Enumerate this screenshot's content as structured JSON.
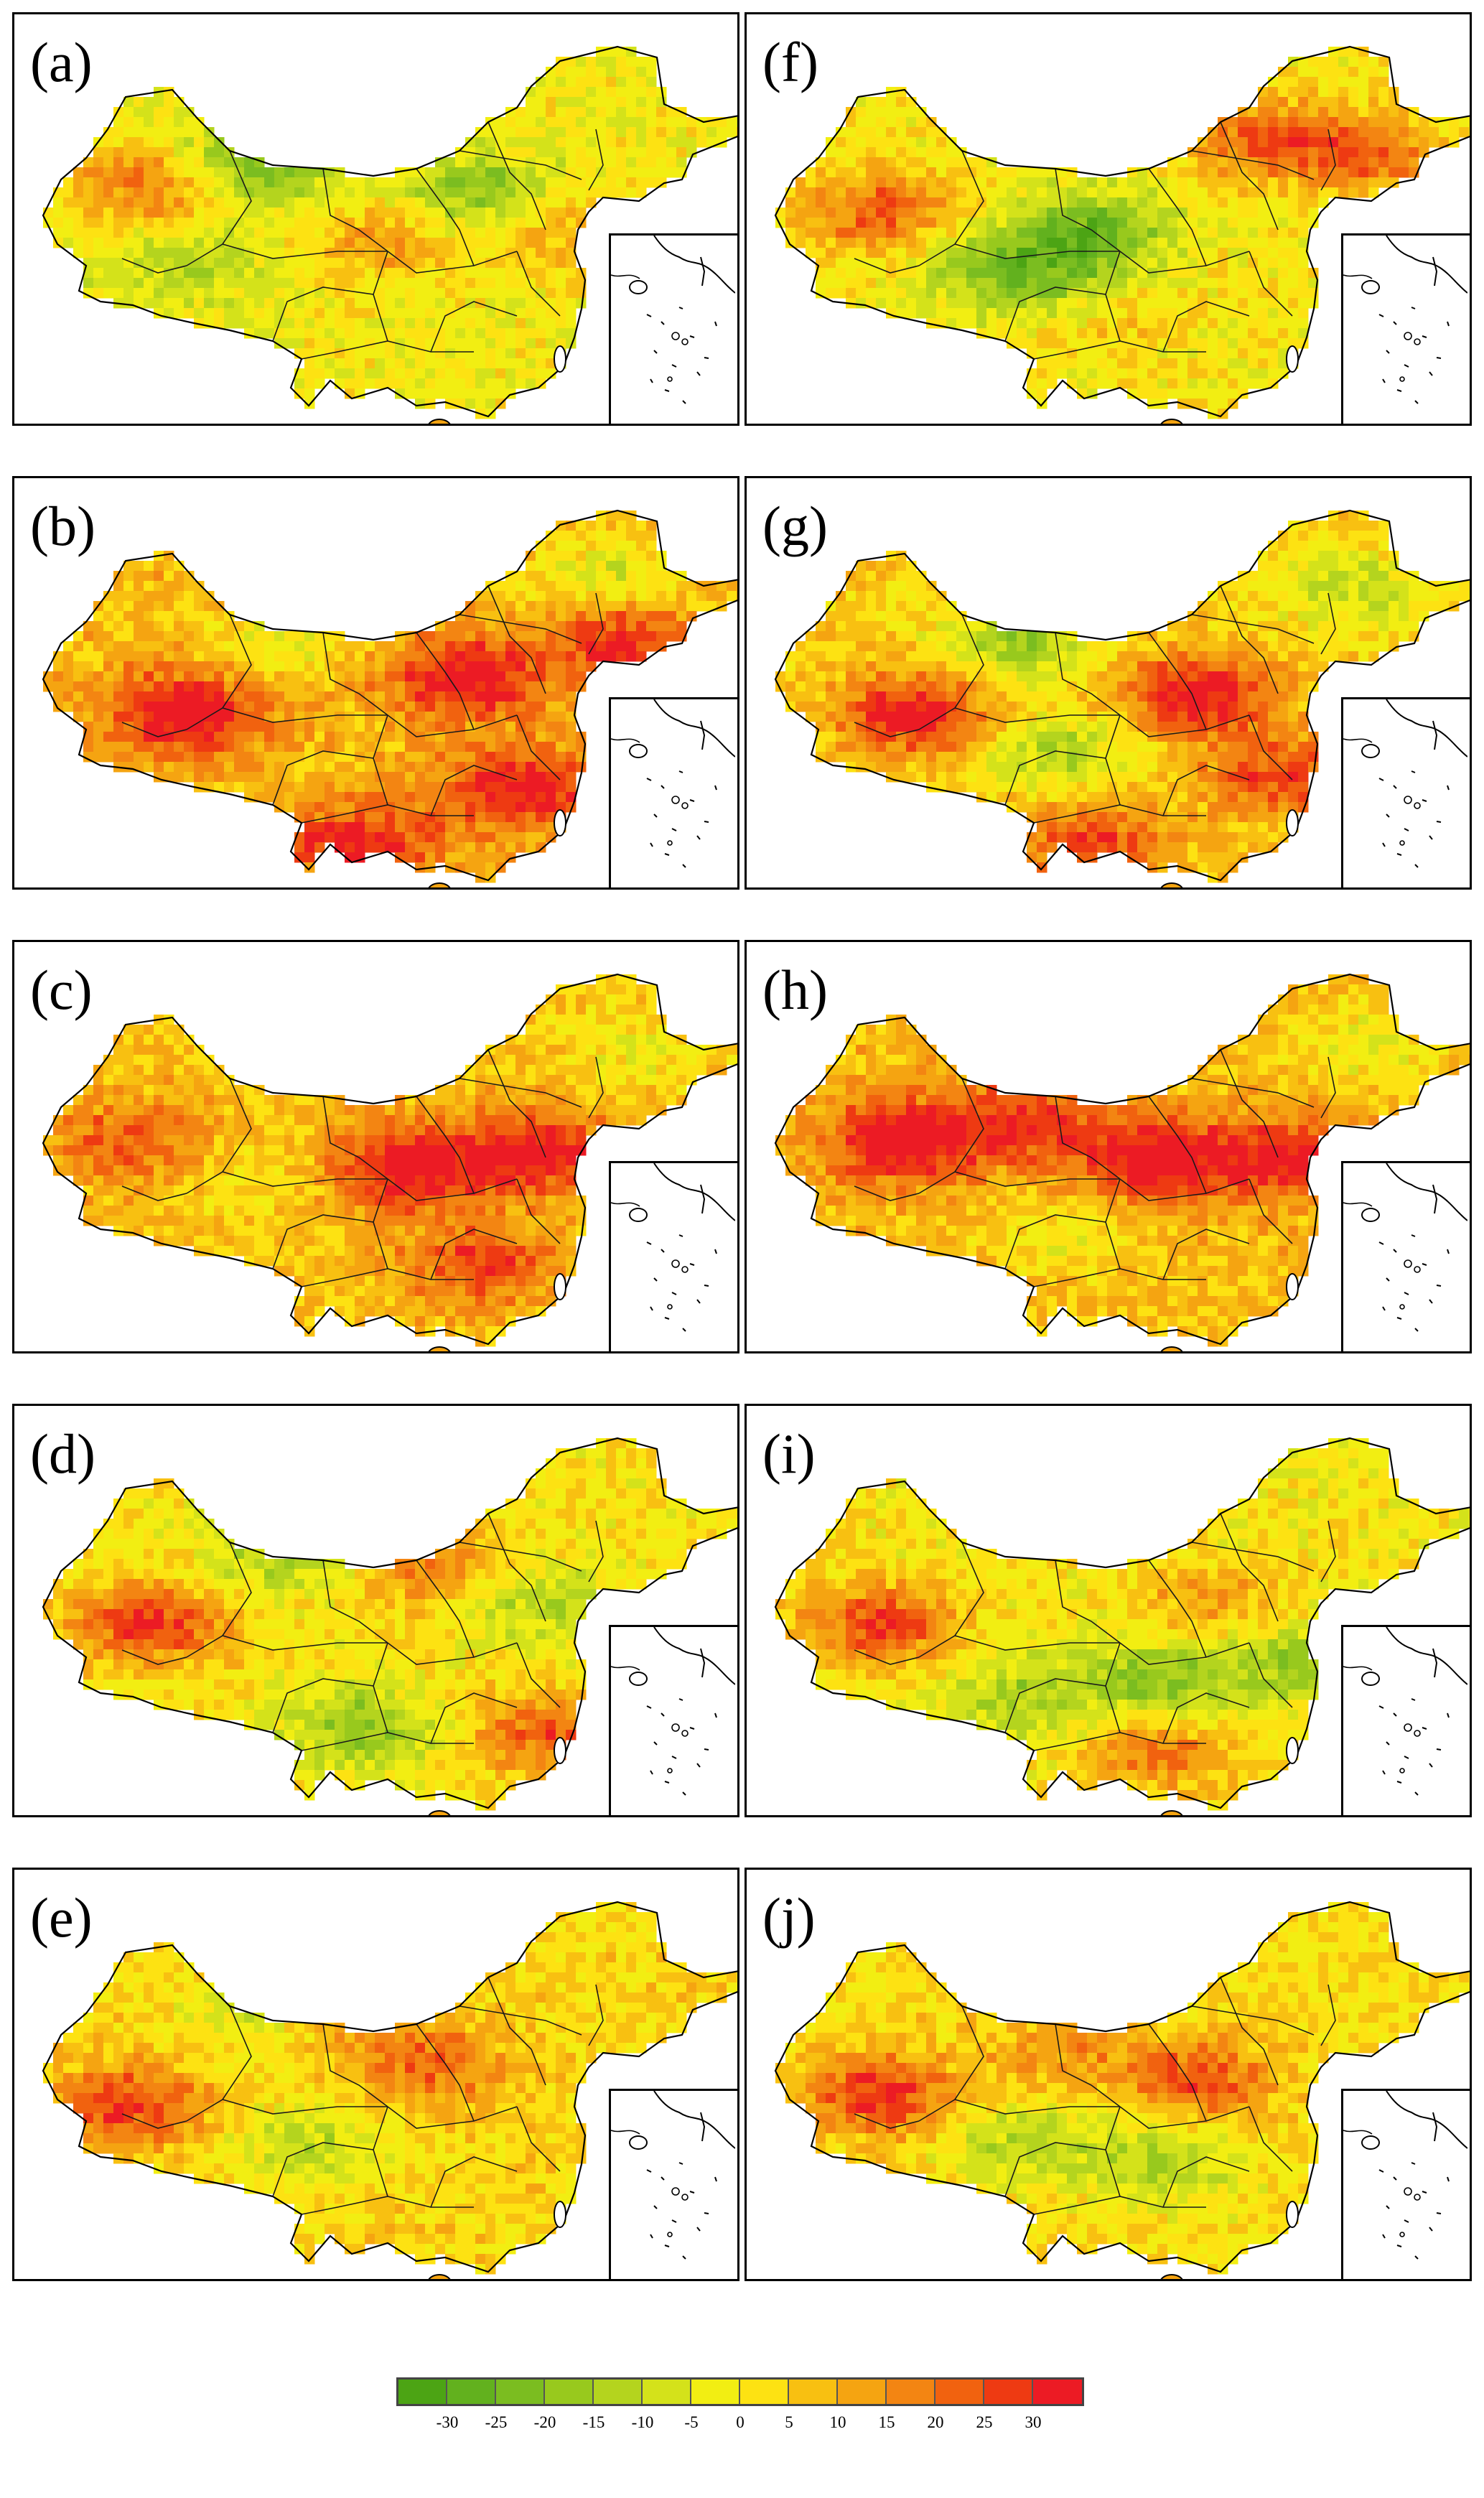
{
  "panels": [
    {
      "id": "a",
      "label": "(a)",
      "seed": 11,
      "bias": -0.05,
      "hotspots": [
        [
          0.15,
          0.38,
          0.9
        ],
        [
          0.48,
          0.52,
          0.6
        ],
        [
          0.72,
          0.5,
          0.5
        ]
      ],
      "coolspots": [
        [
          0.3,
          0.32,
          0.9
        ],
        [
          0.62,
          0.4,
          0.8
        ],
        [
          0.2,
          0.58,
          0.5
        ]
      ]
    },
    {
      "id": "b",
      "label": "(b)",
      "seed": 23,
      "bias": 0.35,
      "hotspots": [
        [
          0.2,
          0.55,
          1.2
        ],
        [
          0.6,
          0.45,
          1.1
        ],
        [
          0.68,
          0.75,
          1.0
        ],
        [
          0.45,
          0.9,
          1.0
        ],
        [
          0.82,
          0.35,
          0.9
        ]
      ],
      "coolspots": [
        [
          0.35,
          0.35,
          0.5
        ],
        [
          0.8,
          0.18,
          0.6
        ]
      ]
    },
    {
      "id": "c",
      "label": "(c)",
      "seed": 37,
      "bias": 0.3,
      "hotspots": [
        [
          0.52,
          0.52,
          1.2
        ],
        [
          0.7,
          0.48,
          1.1
        ],
        [
          0.12,
          0.45,
          0.7
        ],
        [
          0.62,
          0.78,
          0.8
        ]
      ],
      "coolspots": [
        [
          0.3,
          0.55,
          0.3
        ],
        [
          0.85,
          0.2,
          0.4
        ]
      ]
    },
    {
      "id": "d",
      "label": "(d)",
      "seed": 41,
      "bias": 0.05,
      "hotspots": [
        [
          0.15,
          0.5,
          1.1
        ],
        [
          0.72,
          0.8,
          0.9
        ],
        [
          0.55,
          0.35,
          0.7
        ]
      ],
      "coolspots": [
        [
          0.35,
          0.3,
          0.8
        ],
        [
          0.45,
          0.78,
          0.8
        ],
        [
          0.7,
          0.45,
          0.6
        ]
      ]
    },
    {
      "id": "e",
      "label": "(e)",
      "seed": 53,
      "bias": 0.15,
      "hotspots": [
        [
          0.12,
          0.55,
          1.0
        ],
        [
          0.55,
          0.45,
          0.7
        ],
        [
          0.45,
          0.3,
          0.5
        ]
      ],
      "coolspots": [
        [
          0.38,
          0.65,
          0.6
        ],
        [
          0.3,
          0.3,
          0.4
        ]
      ]
    },
    {
      "id": "f",
      "label": "(f)",
      "seed": 61,
      "bias": 0.0,
      "hotspots": [
        [
          0.15,
          0.45,
          1.0
        ],
        [
          0.7,
          0.25,
          0.9
        ],
        [
          0.85,
          0.3,
          0.8
        ],
        [
          0.45,
          0.7,
          0.5
        ]
      ],
      "coolspots": [
        [
          0.45,
          0.5,
          1.0
        ],
        [
          0.4,
          0.65,
          0.8
        ],
        [
          0.3,
          0.58,
          0.6
        ]
      ]
    },
    {
      "id": "g",
      "label": "(g)",
      "seed": 73,
      "bias": 0.2,
      "hotspots": [
        [
          0.2,
          0.55,
          1.2
        ],
        [
          0.6,
          0.5,
          1.2
        ],
        [
          0.72,
          0.72,
          0.9
        ],
        [
          0.45,
          0.9,
          0.9
        ]
      ],
      "coolspots": [
        [
          0.35,
          0.35,
          0.9
        ],
        [
          0.4,
          0.65,
          0.7
        ],
        [
          0.82,
          0.22,
          0.6
        ]
      ]
    },
    {
      "id": "h",
      "label": "(h)",
      "seed": 89,
      "bias": 0.35,
      "hotspots": [
        [
          0.18,
          0.45,
          1.2
        ],
        [
          0.55,
          0.5,
          1.2
        ],
        [
          0.75,
          0.5,
          1.0
        ],
        [
          0.35,
          0.4,
          0.8
        ]
      ],
      "coolspots": [
        [
          0.4,
          0.72,
          0.4
        ],
        [
          0.85,
          0.2,
          0.5
        ]
      ]
    },
    {
      "id": "i",
      "label": "(i)",
      "seed": 97,
      "bias": 0.0,
      "hotspots": [
        [
          0.15,
          0.5,
          1.1
        ],
        [
          0.55,
          0.85,
          0.8
        ],
        [
          0.62,
          0.45,
          0.6
        ]
      ],
      "coolspots": [
        [
          0.55,
          0.65,
          0.8
        ],
        [
          0.75,
          0.6,
          0.7
        ],
        [
          0.35,
          0.7,
          0.6
        ]
      ]
    },
    {
      "id": "j",
      "label": "(j)",
      "seed": 101,
      "bias": 0.1,
      "hotspots": [
        [
          0.15,
          0.52,
          1.1
        ],
        [
          0.6,
          0.48,
          0.9
        ],
        [
          0.4,
          0.4,
          0.5
        ]
      ],
      "coolspots": [
        [
          0.35,
          0.65,
          0.6
        ],
        [
          0.55,
          0.7,
          0.6
        ]
      ]
    }
  ],
  "legend": {
    "colors": [
      "#4ca414",
      "#62b11e",
      "#7bbd20",
      "#98c91d",
      "#b4d41e",
      "#d4e21a",
      "#f2ee12",
      "#fde212",
      "#f8c011",
      "#f5a411",
      "#f38512",
      "#f1620f",
      "#ee3a12",
      "#ec1b24"
    ],
    "ticks": [
      "-30",
      "-25",
      "-20",
      "-15",
      "-10",
      "-5",
      "0",
      "5",
      "10",
      "15",
      "20",
      "25",
      "30"
    ]
  }
}
